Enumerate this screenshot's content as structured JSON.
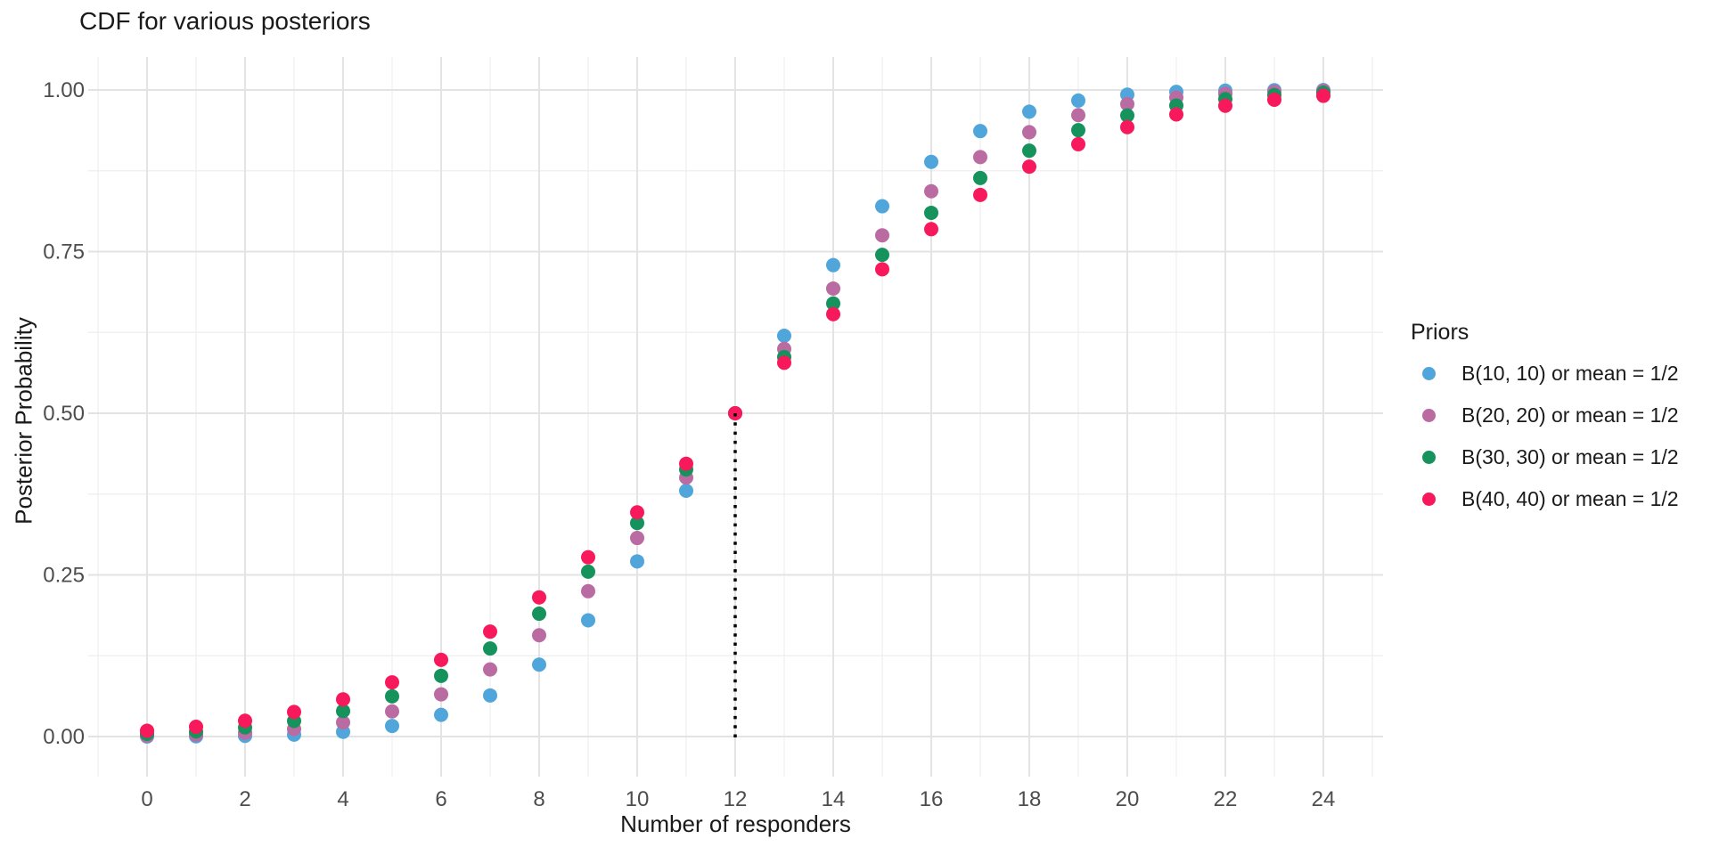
{
  "page": {
    "background": "#ffffff",
    "text_color": "#1a1a1a",
    "tick_label_color": "#4d4d4d",
    "grid_major_color": "#e3e3e3",
    "grid_minor_color": "#eeeeee"
  },
  "chart_data": {
    "type": "scatter",
    "title": "CDF for various posteriors",
    "xlabel": "Number of responders",
    "ylabel": "Posterior Probability",
    "legend_title": "Priors",
    "legend_position": "right",
    "grid": {
      "major": true,
      "minor": true
    },
    "xlim": [
      0,
      24
    ],
    "ylim": [
      0,
      1
    ],
    "x": [
      0,
      1,
      2,
      3,
      4,
      5,
      6,
      7,
      8,
      9,
      10,
      11,
      12,
      13,
      14,
      15,
      16,
      17,
      18,
      19,
      20,
      21,
      22,
      23,
      24
    ],
    "series": [
      {
        "name": "B(10, 10) or mean = 1/2",
        "color": "#50A6DB",
        "values": [
          0.0001,
          0.0004,
          0.0011,
          0.003,
          0.0073,
          0.0164,
          0.0336,
          0.0636,
          0.1112,
          0.1798,
          0.2709,
          0.3802,
          0.5,
          0.6198,
          0.7291,
          0.8202,
          0.8888,
          0.9364,
          0.9664,
          0.9836,
          0.9927,
          0.997,
          0.9989,
          0.9996,
          0.9999
        ]
      },
      {
        "name": "B(20, 20) or mean = 1/2",
        "color": "#BA6BA1",
        "values": [
          0.0013,
          0.0028,
          0.0059,
          0.0117,
          0.0219,
          0.0389,
          0.0653,
          0.1038,
          0.1567,
          0.2248,
          0.3071,
          0.4005,
          0.5,
          0.5995,
          0.6929,
          0.7752,
          0.8433,
          0.8962,
          0.9347,
          0.9611,
          0.9781,
          0.9883,
          0.9941,
          0.9972,
          0.9987
        ]
      },
      {
        "name": "B(30, 30) or mean = 1/2",
        "color": "#16935D",
        "values": [
          0.0042,
          0.0079,
          0.0141,
          0.0241,
          0.0395,
          0.0622,
          0.0939,
          0.1362,
          0.19,
          0.255,
          0.3303,
          0.4131,
          0.5,
          0.5869,
          0.6697,
          0.745,
          0.81,
          0.8638,
          0.9061,
          0.9378,
          0.9605,
          0.9759,
          0.9859,
          0.9921,
          0.9958
        ]
      },
      {
        "name": "B(40, 40) or mean = 1/2",
        "color": "#F8195C",
        "values": [
          0.009,
          0.0151,
          0.0244,
          0.038,
          0.0575,
          0.0839,
          0.1186,
          0.1623,
          0.2153,
          0.2773,
          0.3468,
          0.4219,
          0.5,
          0.5781,
          0.6532,
          0.7227,
          0.7847,
          0.8377,
          0.8814,
          0.9161,
          0.9425,
          0.9621,
          0.9756,
          0.9849,
          0.991
        ]
      }
    ],
    "x_ticks": {
      "values": [
        0,
        2,
        4,
        6,
        8,
        10,
        12,
        14,
        16,
        18,
        20,
        22,
        24
      ],
      "labels": [
        "0",
        "2",
        "4",
        "6",
        "8",
        "10",
        "12",
        "14",
        "16",
        "18",
        "20",
        "22",
        "24"
      ]
    },
    "y_ticks": {
      "values": [
        0,
        0.25,
        0.5,
        0.75,
        1
      ],
      "labels": [
        "0.00",
        "0.25",
        "0.50",
        "0.75",
        "1.00"
      ]
    },
    "reference_line": {
      "x": 12,
      "y_start": 0,
      "y_end": 0.5,
      "line_style": "dotted",
      "color": "#000000"
    }
  }
}
